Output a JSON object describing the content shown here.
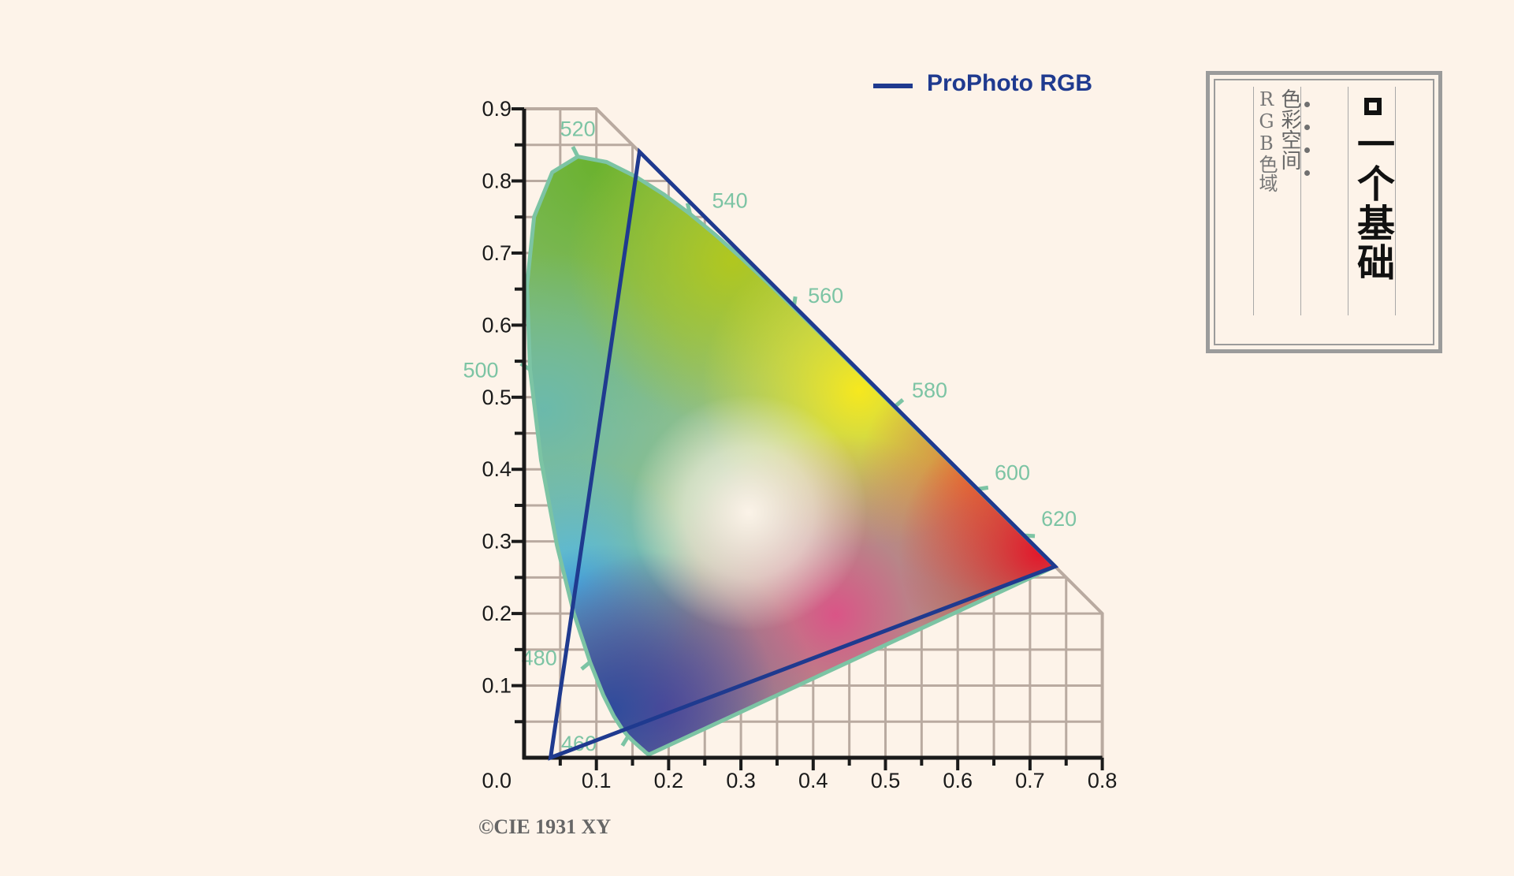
{
  "chart_data": {
    "type": "scatter",
    "subtype": "CIE 1931 chromaticity diagram",
    "xlim": [
      0,
      0.8
    ],
    "ylim": [
      0,
      0.9
    ],
    "x_ticks": [
      "0.1",
      "0.2",
      "0.3",
      "0.4",
      "0.5",
      "0.6",
      "0.7",
      "0.8"
    ],
    "y_ticks": [
      "0.9",
      "0.8",
      "0.7",
      "0.6",
      "0.5",
      "0.4",
      "0.3",
      "0.2",
      "0.1"
    ],
    "origin_label": "0.0",
    "grid": true,
    "legend_position": "top",
    "series": [
      {
        "name": "ProPhoto RGB",
        "color": "#1f3a8f",
        "points": [
          [
            0.7347,
            0.2653
          ],
          [
            0.1596,
            0.8404
          ],
          [
            0.0366,
            0.0001
          ]
        ]
      }
    ],
    "spectral_locus": [
      [
        0.1741,
        0.005
      ],
      [
        0.1738,
        0.0049
      ],
      [
        0.1736,
        0.0049
      ],
      [
        0.1733,
        0.0048
      ],
      [
        0.173,
        0.0048
      ],
      [
        0.1726,
        0.0048
      ],
      [
        0.1721,
        0.0048
      ],
      [
        0.1714,
        0.0051
      ],
      [
        0.1703,
        0.0058
      ],
      [
        0.1689,
        0.0069
      ],
      [
        0.1669,
        0.0086
      ],
      [
        0.1644,
        0.0109
      ],
      [
        0.1611,
        0.0138
      ],
      [
        0.1566,
        0.0177
      ],
      [
        0.151,
        0.0227
      ],
      [
        0.144,
        0.0297
      ],
      [
        0.1355,
        0.0399
      ],
      [
        0.1241,
        0.0578
      ],
      [
        0.1096,
        0.0868
      ],
      [
        0.0913,
        0.1327
      ],
      [
        0.0687,
        0.2007
      ],
      [
        0.0454,
        0.295
      ],
      [
        0.0235,
        0.4127
      ],
      [
        0.0082,
        0.5384
      ],
      [
        0.0039,
        0.6548
      ],
      [
        0.0139,
        0.7502
      ],
      [
        0.0389,
        0.812
      ],
      [
        0.0743,
        0.8338
      ],
      [
        0.1142,
        0.8262
      ],
      [
        0.1547,
        0.8059
      ],
      [
        0.1929,
        0.7816
      ],
      [
        0.2296,
        0.7543
      ],
      [
        0.2658,
        0.7243
      ],
      [
        0.3016,
        0.6923
      ],
      [
        0.3373,
        0.6589
      ],
      [
        0.3731,
        0.6245
      ],
      [
        0.4087,
        0.5896
      ],
      [
        0.4441,
        0.5547
      ],
      [
        0.4788,
        0.5202
      ],
      [
        0.5125,
        0.4866
      ],
      [
        0.5448,
        0.4544
      ],
      [
        0.5752,
        0.4242
      ],
      [
        0.6029,
        0.3965
      ],
      [
        0.627,
        0.3725
      ],
      [
        0.6482,
        0.3514
      ],
      [
        0.6658,
        0.334
      ],
      [
        0.6801,
        0.3197
      ],
      [
        0.6915,
        0.3083
      ],
      [
        0.7006,
        0.2993
      ],
      [
        0.7079,
        0.292
      ],
      [
        0.714,
        0.2859
      ],
      [
        0.719,
        0.2809
      ],
      [
        0.723,
        0.277
      ],
      [
        0.726,
        0.274
      ],
      [
        0.7283,
        0.2717
      ],
      [
        0.73,
        0.27
      ],
      [
        0.7311,
        0.2689
      ],
      [
        0.732,
        0.268
      ],
      [
        0.7327,
        0.2673
      ],
      [
        0.7334,
        0.2666
      ],
      [
        0.734,
        0.266
      ],
      [
        0.7344,
        0.2656
      ],
      [
        0.7346,
        0.2654
      ],
      [
        0.7347,
        0.2653
      ]
    ],
    "wavelength_labels": [
      {
        "text": "460",
        "x": 0.144,
        "y": 0.0297
      },
      {
        "text": "480",
        "x": 0.0913,
        "y": 0.1327
      },
      {
        "text": "500",
        "x": 0.0082,
        "y": 0.5384
      },
      {
        "text": "520",
        "x": 0.0743,
        "y": 0.8338
      },
      {
        "text": "540",
        "x": 0.2296,
        "y": 0.7543
      },
      {
        "text": "560",
        "x": 0.3731,
        "y": 0.6245
      },
      {
        "text": "580",
        "x": 0.5125,
        "y": 0.4866
      },
      {
        "text": "600",
        "x": 0.627,
        "y": 0.3725
      },
      {
        "text": "620",
        "x": 0.6915,
        "y": 0.3083
      }
    ],
    "locus_color": "#7cc4a4",
    "grid_color": "#b9aaa0",
    "axis_color": "#1a1a1a"
  },
  "credit": "©CIE 1931 XY",
  "title_plate": {
    "main_title": "一个基础",
    "col1": [
      "色",
      "彩",
      "空",
      "间"
    ],
    "col2_latin": [
      "R",
      "G",
      "B"
    ],
    "col2_cjk": [
      "色",
      "域"
    ]
  }
}
